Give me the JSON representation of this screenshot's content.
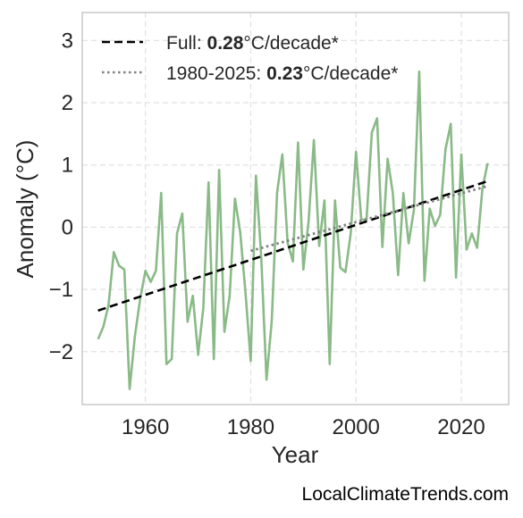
{
  "chart_data": {
    "type": "line",
    "xlabel": "Year",
    "ylabel": "Anomaly (°C)",
    "xlim": [
      1948,
      2029
    ],
    "ylim": [
      -2.85,
      3.45
    ],
    "x_ticks": [
      1960,
      1980,
      2000,
      2020
    ],
    "y_ticks": [
      3,
      2,
      1,
      0,
      -1,
      -2
    ],
    "y_tick_labels": [
      "3",
      "2",
      "1",
      "0",
      "−1",
      "−2"
    ],
    "grid": true,
    "legend_position": "top-left",
    "series": [
      {
        "color": "#8aba87",
        "x": [
          1951,
          1952,
          1953,
          1954,
          1955,
          1956,
          1957,
          1958,
          1959,
          1960,
          1961,
          1962,
          1963,
          1964,
          1965,
          1966,
          1967,
          1968,
          1969,
          1970,
          1971,
          1972,
          1973,
          1974,
          1975,
          1976,
          1977,
          1978,
          1979,
          1980,
          1981,
          1982,
          1983,
          1984,
          1985,
          1986,
          1987,
          1988,
          1989,
          1990,
          1991,
          1992,
          1993,
          1994,
          1995,
          1996,
          1997,
          1998,
          1999,
          2000,
          2001,
          2002,
          2003,
          2004,
          2005,
          2006,
          2007,
          2008,
          2009,
          2010,
          2011,
          2012,
          2013,
          2014,
          2015,
          2016,
          2017,
          2018,
          2019,
          2020,
          2021,
          2022,
          2023,
          2024,
          2025
        ],
        "y": [
          -1.8,
          -1.6,
          -1.25,
          -0.4,
          -0.62,
          -0.68,
          -2.6,
          -1.75,
          -1.15,
          -0.7,
          -0.88,
          -0.7,
          0.55,
          -2.2,
          -2.12,
          -0.1,
          0.22,
          -1.52,
          -1.1,
          -2.05,
          -1.3,
          0.72,
          -2.12,
          0.92,
          -1.68,
          -1.1,
          0.46,
          -0.08,
          -1.05,
          -2.15,
          0.83,
          -0.48,
          -2.45,
          -1.5,
          0.55,
          1.17,
          -0.25,
          -0.55,
          1.36,
          -0.68,
          0.1,
          1.4,
          -0.3,
          0.43,
          -2.2,
          0.43,
          -0.65,
          -0.72,
          -0.1,
          1.21,
          0.12,
          0.12,
          1.52,
          1.75,
          -0.32,
          1.1,
          0.55,
          -0.77,
          0.55,
          -0.26,
          0.28,
          2.5,
          -0.86,
          0.3,
          0.02,
          0.2,
          1.25,
          1.66,
          -0.81,
          1.17,
          -0.36,
          -0.1,
          -0.33,
          0.62,
          1.03
        ]
      }
    ],
    "trends": [
      {
        "style": "dashed",
        "color": "#000000",
        "label_prefix": "Full: ",
        "rate": "0.28",
        "label_suffix": "°C/decade*",
        "x": [
          1951,
          2025
        ],
        "y": [
          -1.34,
          0.74
        ]
      },
      {
        "style": "dotted",
        "color": "#808080",
        "label_prefix": "1980-2025: ",
        "rate": "0.23",
        "label_suffix": "°C/decade*",
        "x": [
          1980,
          2025
        ],
        "y": [
          -0.38,
          0.66
        ]
      }
    ]
  },
  "credit": "LocalClimateTrends.com"
}
